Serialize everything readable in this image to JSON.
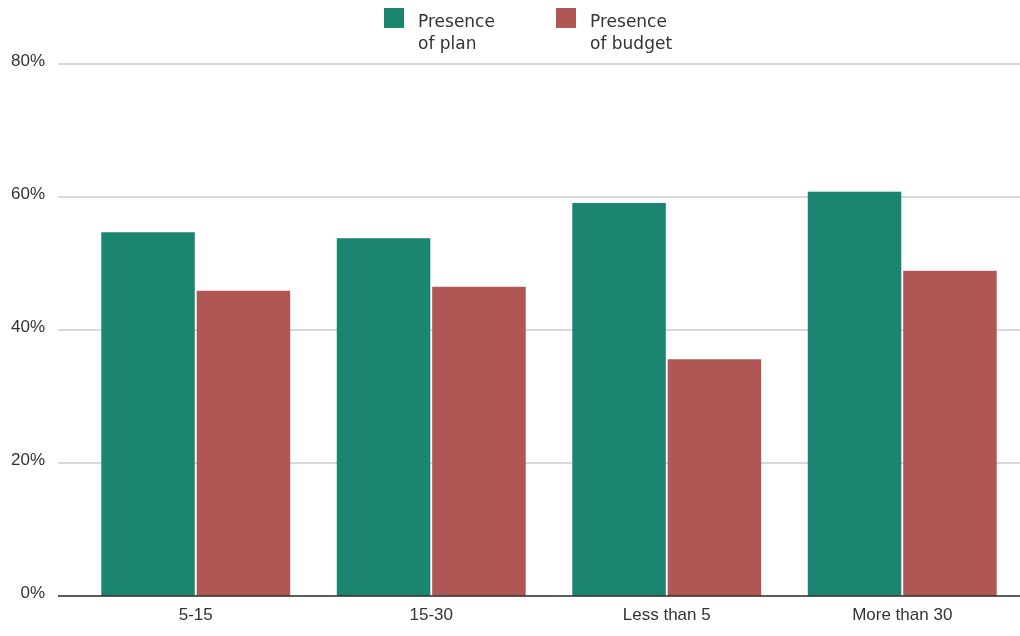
{
  "chart_data": {
    "type": "bar",
    "categories": [
      "5-15",
      "15-30",
      "Less than 5",
      "More than 30"
    ],
    "series": [
      {
        "name": "Presence of plan",
        "color": "#1b8571",
        "values": [
          54.7,
          53.8,
          59.1,
          60.8
        ]
      },
      {
        "name": "Presence of budget",
        "color": "#b05654",
        "values": [
          45.9,
          46.5,
          35.6,
          48.9
        ]
      }
    ],
    "ylim": [
      0,
      80
    ],
    "yticks": [
      {
        "value": 0,
        "label": "0%"
      },
      {
        "value": 20,
        "label": "20%"
      },
      {
        "value": 40,
        "label": "40%"
      },
      {
        "value": 60,
        "label": "60%"
      },
      {
        "value": 80,
        "label": "80%"
      }
    ],
    "grid": "y",
    "legend": "top"
  }
}
